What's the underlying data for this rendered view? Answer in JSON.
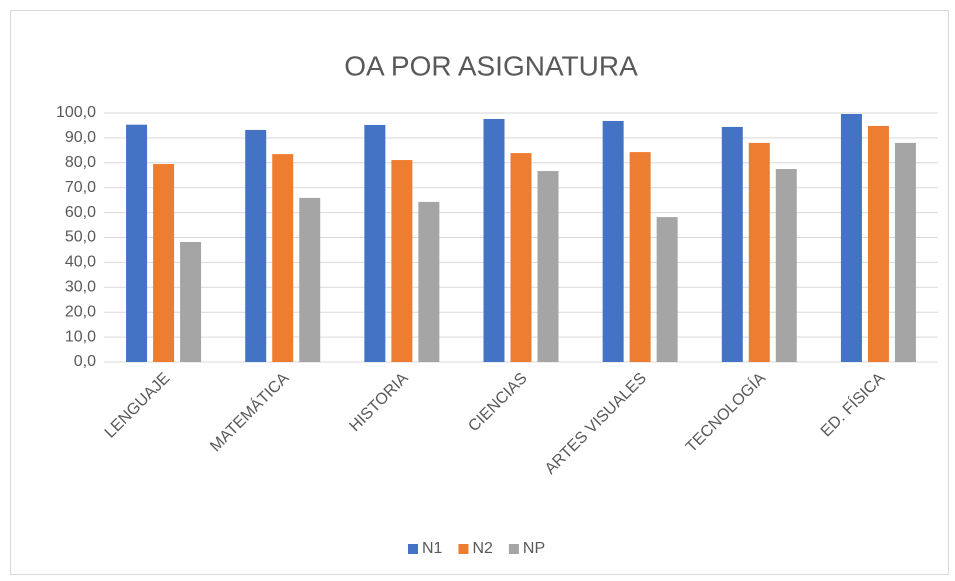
{
  "chart_data": {
    "type": "bar",
    "title": "OA POR ASIGNATURA",
    "categories": [
      "LENGUAJE",
      "MATEMÁTICA",
      "HISTORIA",
      "CIENCIAS",
      "ARTES VISUALES",
      "TECNOLOGÍA",
      "ED. FÍSICA"
    ],
    "series": [
      {
        "name": "N1",
        "color": "#4472c4",
        "values": [
          95.3,
          93.2,
          95.2,
          97.6,
          96.8,
          94.4,
          99.6
        ]
      },
      {
        "name": "N2",
        "color": "#ed7d31",
        "values": [
          79.5,
          83.5,
          81.1,
          83.9,
          84.3,
          88.0,
          94.8
        ]
      },
      {
        "name": "NP",
        "color": "#a5a5a5",
        "values": [
          48.2,
          65.9,
          64.3,
          76.7,
          58.2,
          77.5,
          88.0
        ]
      }
    ],
    "ylim": [
      0,
      100
    ],
    "yticks": [
      {
        "value": 0,
        "label": "0,0"
      },
      {
        "value": 10,
        "label": "10,0"
      },
      {
        "value": 20,
        "label": "20,0"
      },
      {
        "value": 30,
        "label": "30,0"
      },
      {
        "value": 40,
        "label": "40,0"
      },
      {
        "value": 50,
        "label": "50,0"
      },
      {
        "value": 60,
        "label": "60,0"
      },
      {
        "value": 70,
        "label": "70,0"
      },
      {
        "value": 80,
        "label": "80,0"
      },
      {
        "value": 90,
        "label": "90,0"
      },
      {
        "value": 100,
        "label": "100,0"
      }
    ],
    "grid": true,
    "legend": "bottom"
  }
}
